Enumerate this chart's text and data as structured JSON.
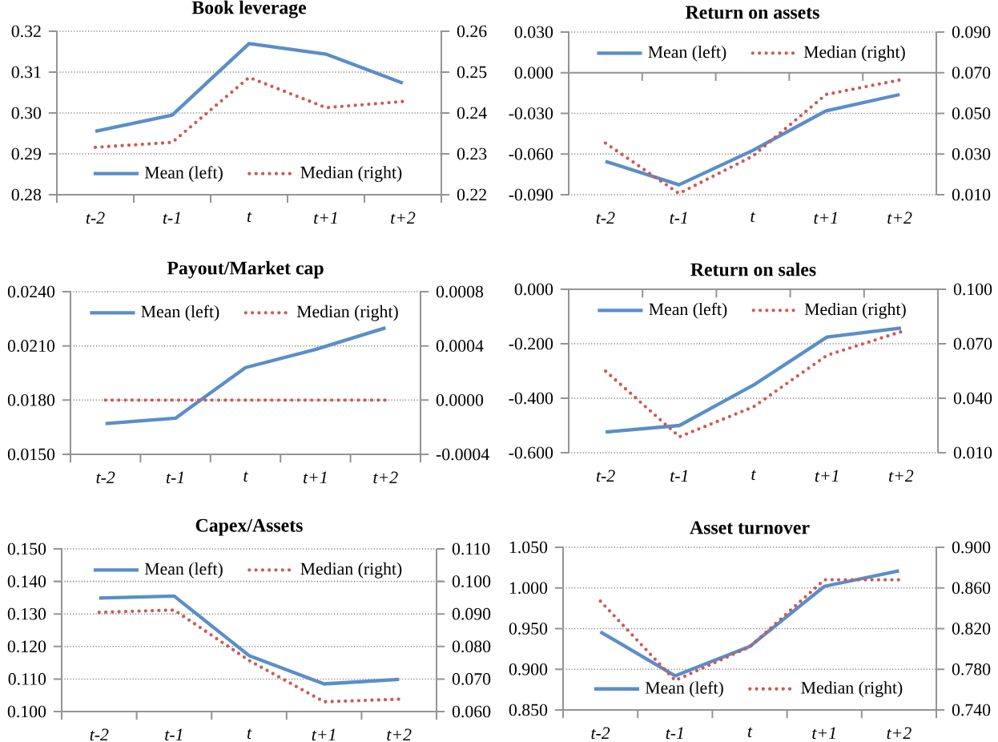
{
  "chart_data": [
    {
      "type": "line",
      "title": "Book leverage",
      "categories": [
        "t-2",
        "t-1",
        "t",
        "t+1",
        "t+2"
      ],
      "grid": "y",
      "legend": "bottom",
      "series": [
        {
          "name": "Mean (left)",
          "color": "#5b8ec8",
          "line_style": "solid",
          "values": [
            0.2955,
            0.2995,
            0.317,
            0.3144,
            0.3073
          ]
        },
        {
          "name": "Median (right)",
          "color": "#cc5a55",
          "line_style": "dotted",
          "axis": "y2",
          "values": [
            0.2316,
            0.2328,
            0.2487,
            0.2413,
            0.2428
          ]
        }
      ],
      "ylim": [
        0.28,
        0.32
      ],
      "yticks": [
        {
          "value": 0.28,
          "label": "0.28"
        },
        {
          "value": 0.29,
          "label": "0.29"
        },
        {
          "value": 0.3,
          "label": "0.30"
        },
        {
          "value": 0.31,
          "label": "0.31"
        },
        {
          "value": 0.32,
          "label": "0.32"
        }
      ],
      "y2lim": [
        0.22,
        0.26
      ],
      "y2ticks": [
        {
          "value": 0.22,
          "label": "0.22"
        },
        {
          "value": 0.23,
          "label": "0.23"
        },
        {
          "value": 0.24,
          "label": "0.24"
        },
        {
          "value": 0.25,
          "label": "0.25"
        },
        {
          "value": 0.26,
          "label": "0.26"
        }
      ]
    },
    {
      "type": "line",
      "title": "Return on assets",
      "categories": [
        "t-2",
        "t-1",
        "t",
        "t+1",
        "t+2"
      ],
      "grid": "y",
      "legend": "top",
      "series": [
        {
          "name": "Mean (left)",
          "color": "#5b8ec8",
          "line_style": "solid",
          "values": [
            -0.0654,
            -0.0827,
            -0.0574,
            -0.0281,
            -0.0161
          ]
        },
        {
          "name": "Median (right)",
          "color": "#cc5a55",
          "line_style": "dotted",
          "axis": "y2",
          "values": [
            0.0354,
            0.0106,
            0.0289,
            0.0593,
            0.0664
          ]
        }
      ],
      "ylim": [
        -0.09,
        0.03
      ],
      "yticks": [
        {
          "value": -0.09,
          "label": "-0.090"
        },
        {
          "value": -0.06,
          "label": "-0.060"
        },
        {
          "value": -0.03,
          "label": "-0.030"
        },
        {
          "value": 0,
          "label": "0.000"
        },
        {
          "value": 0.03,
          "label": "0.030"
        }
      ],
      "y2lim": [
        0.01,
        0.09
      ],
      "y2ticks": [
        {
          "value": 0.01,
          "label": "0.010"
        },
        {
          "value": 0.03,
          "label": "0.030"
        },
        {
          "value": 0.05,
          "label": "0.050"
        },
        {
          "value": 0.07,
          "label": "0.070"
        },
        {
          "value": 0.09,
          "label": "0.090"
        }
      ]
    },
    {
      "type": "line",
      "title": "Payout/Market cap",
      "categories": [
        "t-2",
        "t-1",
        "t",
        "t+1",
        "t+2"
      ],
      "grid": "y",
      "legend": "top",
      "series": [
        {
          "name": "Mean (left)",
          "color": "#5b8ec8",
          "line_style": "solid",
          "values": [
            0.0167,
            0.017,
            0.0198,
            0.0208,
            0.022
          ]
        },
        {
          "name": "Median (right)",
          "color": "#cc5a55",
          "line_style": "dotted",
          "axis": "y2",
          "values": [
            0,
            0,
            0,
            0,
            0
          ]
        }
      ],
      "ylim": [
        0.015,
        0.024
      ],
      "yticks": [
        {
          "value": 0.015,
          "label": "0.0150"
        },
        {
          "value": 0.018,
          "label": "0.0180"
        },
        {
          "value": 0.021,
          "label": "0.0210"
        },
        {
          "value": 0.024,
          "label": "0.0240"
        }
      ],
      "y2lim": [
        -0.0004,
        0.0008
      ],
      "y2ticks": [
        {
          "value": -0.0004,
          "label": "-0.0004"
        },
        {
          "value": 0,
          "label": "0.0000"
        },
        {
          "value": 0.0004,
          "label": "0.0004"
        },
        {
          "value": 0.0008,
          "label": "0.0008"
        }
      ]
    },
    {
      "type": "line",
      "title": "Return on sales",
      "categories": [
        "t-2",
        "t-1",
        "t",
        "t+1",
        "t+2"
      ],
      "grid": "y",
      "legend": "top",
      "series": [
        {
          "name": "Mean (left)",
          "color": "#5b8ec8",
          "line_style": "solid",
          "values": [
            -0.524,
            -0.5,
            -0.352,
            -0.175,
            -0.142
          ]
        },
        {
          "name": "Median (right)",
          "color": "#cc5a55",
          "line_style": "dotted",
          "axis": "y2",
          "values": [
            0.0549,
            0.0188,
            0.0352,
            0.0637,
            0.0766
          ]
        }
      ],
      "ylim": [
        -0.6,
        0
      ],
      "yticks": [
        {
          "value": -0.6,
          "label": "-0.600"
        },
        {
          "value": -0.4,
          "label": "-0.400"
        },
        {
          "value": -0.2,
          "label": "-0.200"
        },
        {
          "value": 0,
          "label": "0.000"
        }
      ],
      "y2lim": [
        0.01,
        0.1
      ],
      "y2ticks": [
        {
          "value": 0.01,
          "label": "0.010"
        },
        {
          "value": 0.04,
          "label": "0.040"
        },
        {
          "value": 0.07,
          "label": "0.070"
        },
        {
          "value": 0.1,
          "label": "0.100"
        }
      ]
    },
    {
      "type": "line",
      "title": "Capex/Assets",
      "categories": [
        "t-2",
        "t-1",
        "t",
        "t+1",
        "t+2"
      ],
      "grid": "y",
      "legend": "top",
      "series": [
        {
          "name": "Mean (left)",
          "color": "#5b8ec8",
          "line_style": "solid",
          "values": [
            0.1349,
            0.1355,
            0.1172,
            0.1085,
            0.1099
          ]
        },
        {
          "name": "Median (right)",
          "color": "#cc5a55",
          "line_style": "dotted",
          "axis": "y2",
          "values": [
            0.0905,
            0.0912,
            0.0757,
            0.063,
            0.0638
          ]
        }
      ],
      "ylim": [
        0.1,
        0.15
      ],
      "yticks": [
        {
          "value": 0.1,
          "label": "0.100"
        },
        {
          "value": 0.11,
          "label": "0.110"
        },
        {
          "value": 0.12,
          "label": "0.120"
        },
        {
          "value": 0.13,
          "label": "0.130"
        },
        {
          "value": 0.14,
          "label": "0.140"
        },
        {
          "value": 0.15,
          "label": "0.150"
        }
      ],
      "y2lim": [
        0.06,
        0.11
      ],
      "y2ticks": [
        {
          "value": 0.06,
          "label": "0.060"
        },
        {
          "value": 0.07,
          "label": "0.070"
        },
        {
          "value": 0.08,
          "label": "0.080"
        },
        {
          "value": 0.09,
          "label": "0.090"
        },
        {
          "value": 0.1,
          "label": "0.100"
        },
        {
          "value": 0.11,
          "label": "0.110"
        }
      ]
    },
    {
      "type": "line",
      "title": "Asset turnover",
      "categories": [
        "t-2",
        "t-1",
        "t",
        "t+1",
        "t+2"
      ],
      "grid": "y",
      "legend": "bottom",
      "series": [
        {
          "name": "Mean (left)",
          "color": "#5b8ec8",
          "line_style": "solid",
          "values": [
            0.946,
            0.892,
            0.928,
            1.002,
            1.021
          ]
        },
        {
          "name": "Median (right)",
          "color": "#cc5a55",
          "line_style": "dotted",
          "axis": "y2",
          "values": [
            0.847,
            0.769,
            0.802,
            0.868,
            0.868
          ]
        }
      ],
      "ylim": [
        0.85,
        1.05
      ],
      "yticks": [
        {
          "value": 0.85,
          "label": "0.850"
        },
        {
          "value": 0.9,
          "label": "0.900"
        },
        {
          "value": 0.95,
          "label": "0.950"
        },
        {
          "value": 1.0,
          "label": "1.000"
        },
        {
          "value": 1.05,
          "label": "1.050"
        }
      ],
      "y2lim": [
        0.74,
        0.9
      ],
      "y2ticks": [
        {
          "value": 0.74,
          "label": "0.740"
        },
        {
          "value": 0.78,
          "label": "0.780"
        },
        {
          "value": 0.82,
          "label": "0.820"
        },
        {
          "value": 0.86,
          "label": "0.860"
        },
        {
          "value": 0.9,
          "label": "0.900"
        }
      ]
    }
  ]
}
